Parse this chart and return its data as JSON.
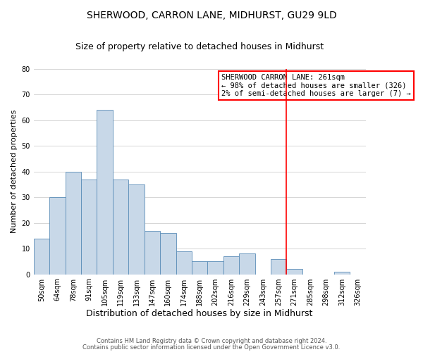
{
  "title": "SHERWOOD, CARRON LANE, MIDHURST, GU29 9LD",
  "subtitle": "Size of property relative to detached houses in Midhurst",
  "xlabel": "Distribution of detached houses by size in Midhurst",
  "ylabel": "Number of detached properties",
  "bar_color": "#c8d8e8",
  "bar_edge_color": "#5b8db8",
  "categories": [
    "50sqm",
    "64sqm",
    "78sqm",
    "91sqm",
    "105sqm",
    "119sqm",
    "133sqm",
    "147sqm",
    "160sqm",
    "174sqm",
    "188sqm",
    "202sqm",
    "216sqm",
    "229sqm",
    "243sqm",
    "257sqm",
    "271sqm",
    "285sqm",
    "298sqm",
    "312sqm",
    "326sqm"
  ],
  "values": [
    14,
    30,
    40,
    37,
    64,
    37,
    35,
    17,
    16,
    9,
    5,
    5,
    7,
    8,
    0,
    6,
    2,
    0,
    0,
    1,
    0
  ],
  "ylim": [
    0,
    80
  ],
  "yticks": [
    0,
    10,
    20,
    30,
    40,
    50,
    60,
    70,
    80
  ],
  "vline_x_index": 15.5,
  "vline_color": "#ff0000",
  "annotation_title": "SHERWOOD CARRON LANE: 261sqm",
  "annotation_line1": "← 98% of detached houses are smaller (326)",
  "annotation_line2": "2% of semi-detached houses are larger (7) →",
  "annotation_box_color": "#ffffff",
  "annotation_box_edge": "#ff0000",
  "footer1": "Contains HM Land Registry data © Crown copyright and database right 2024.",
  "footer2": "Contains public sector information licensed under the Open Government Licence v3.0.",
  "background_color": "#ffffff",
  "grid_color": "#d0d0d0",
  "title_fontsize": 10,
  "subtitle_fontsize": 9,
  "xlabel_fontsize": 9,
  "ylabel_fontsize": 8,
  "tick_fontsize": 7,
  "annotation_fontsize": 7.5,
  "footer_fontsize": 6
}
